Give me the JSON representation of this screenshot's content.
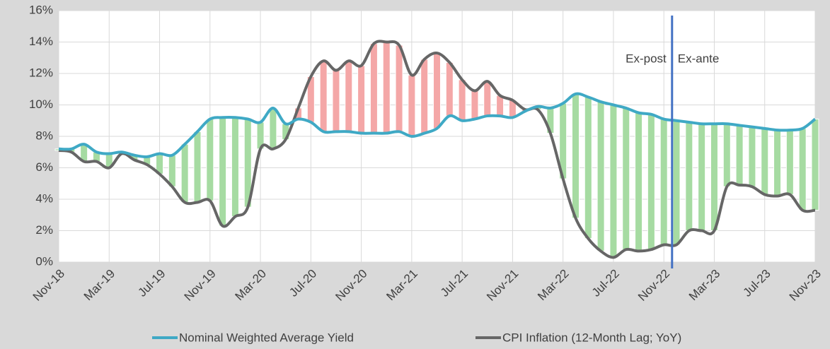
{
  "chart_data": {
    "type": "line",
    "categories": [
      "Nov-18",
      null,
      null,
      null,
      "Mar-19",
      null,
      null,
      null,
      "Jul-19",
      null,
      null,
      null,
      "Nov-19",
      null,
      null,
      null,
      "Mar-20",
      null,
      null,
      null,
      "Jul-20",
      null,
      null,
      null,
      "Nov-20",
      null,
      null,
      null,
      "Mar-21",
      null,
      null,
      null,
      "Jul-21",
      null,
      null,
      null,
      "Nov-21",
      null,
      null,
      null,
      "Mar-22",
      null,
      null,
      null,
      "Jul-22",
      null,
      null,
      null,
      "Nov-22",
      null,
      null,
      null,
      "Mar-23",
      null,
      null,
      null,
      "Jul-23",
      null,
      null,
      null,
      "Nov-23"
    ],
    "series": [
      {
        "name": "Nominal Weighted Average Yield",
        "color": "#3fa9c5",
        "values": [
          7.2,
          7.2,
          7.5,
          7.0,
          6.9,
          7.0,
          6.8,
          6.7,
          6.9,
          6.8,
          7.5,
          8.3,
          9.1,
          9.2,
          9.2,
          9.1,
          8.9,
          9.8,
          8.8,
          9.1,
          8.9,
          8.3,
          8.3,
          8.3,
          8.2,
          8.2,
          8.2,
          8.3,
          8.0,
          8.2,
          8.5,
          9.3,
          9.0,
          9.1,
          9.3,
          9.3,
          9.2,
          9.6,
          9.9,
          9.8,
          10.1,
          10.7,
          10.5,
          10.2,
          10.0,
          9.8,
          9.5,
          9.4,
          9.1,
          9.0,
          8.9,
          8.8,
          8.8,
          8.8,
          8.7,
          8.6,
          8.5,
          8.4,
          8.4,
          8.5,
          9.1
        ]
      },
      {
        "name": "CPI Inflation (12-Month Lag; YoY)",
        "color": "#666666",
        "values": [
          7.1,
          7.0,
          6.4,
          6.4,
          6.0,
          6.9,
          6.5,
          6.2,
          5.6,
          4.8,
          3.8,
          3.8,
          3.9,
          2.3,
          2.9,
          3.5,
          7.2,
          7.2,
          7.8,
          9.8,
          11.8,
          12.8,
          12.2,
          12.8,
          12.5,
          13.9,
          14.0,
          13.8,
          11.9,
          12.9,
          13.3,
          12.7,
          11.6,
          10.9,
          11.5,
          10.6,
          10.3,
          9.7,
          9.7,
          8.2,
          5.3,
          2.8,
          1.5,
          0.7,
          0.3,
          0.8,
          0.7,
          0.8,
          1.1,
          1.1,
          2.0,
          2.0,
          2.0,
          4.8,
          4.9,
          4.8,
          4.3,
          4.2,
          4.3,
          3.3,
          3.3
        ]
      }
    ],
    "spread_colors": {
      "positive": "#a6dba2",
      "negative": "#f4a7a7"
    },
    "divider_color": "#4472c4",
    "annotations": [
      "Ex-post",
      "Ex-ante"
    ],
    "ylim": [
      0,
      16
    ],
    "yticks": [
      {
        "value": 0,
        "label": "0%"
      },
      {
        "value": 2,
        "label": "2%"
      },
      {
        "value": 4,
        "label": "4%"
      },
      {
        "value": 6,
        "label": "6%"
      },
      {
        "value": 8,
        "label": "8%"
      },
      {
        "value": 10,
        "label": "10%"
      },
      {
        "value": 12,
        "label": "12%"
      },
      {
        "value": 14,
        "label": "14%"
      },
      {
        "value": 16,
        "label": "16%"
      }
    ],
    "grid": true,
    "legend": "bottom"
  }
}
